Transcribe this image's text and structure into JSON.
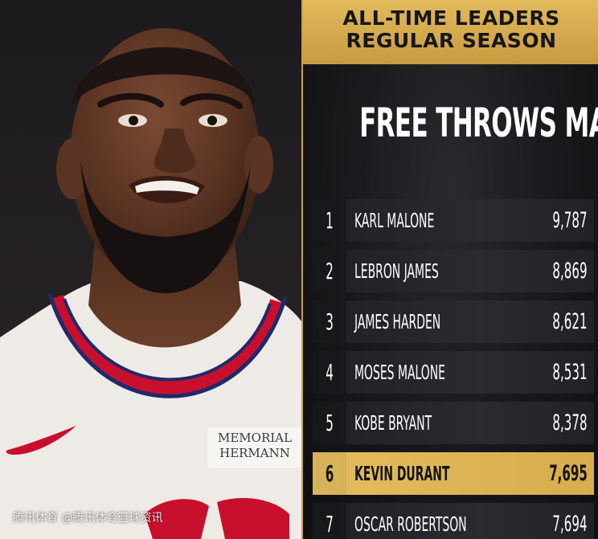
{
  "header": {
    "line1": "ALL-TIME LEADERS",
    "line2": "REGULAR SEASON"
  },
  "title": "FREE THROWS MADE",
  "leaders": [
    {
      "rank": "1",
      "name": "KARL MALONE",
      "value": "9,787"
    },
    {
      "rank": "2",
      "name": "LEBRON JAMES",
      "value": "8,869"
    },
    {
      "rank": "3",
      "name": "JAMES HARDEN",
      "value": "8,621"
    },
    {
      "rank": "4",
      "name": "MOSES MALONE",
      "value": "8,531"
    },
    {
      "rank": "5",
      "name": "KOBE BRYANT",
      "value": "8,378"
    },
    {
      "rank": "6",
      "name": "KEVIN DURANT",
      "value": "7,695"
    },
    {
      "rank": "7",
      "name": "OSCAR ROBERTSON",
      "value": "7,694"
    }
  ],
  "highlighted_rank": "6",
  "photo": {
    "jersey_sponsor_line1": "MEMORIAL",
    "jersey_sponsor_line2": "HERMANN"
  },
  "watermark": "腾讯体育 @腾讯体育篮球资讯",
  "colors": {
    "gold": "#d7ad4d",
    "background": "#18181b",
    "jersey_red": "#c8102e",
    "jersey_navy": "#1d2b6b"
  }
}
